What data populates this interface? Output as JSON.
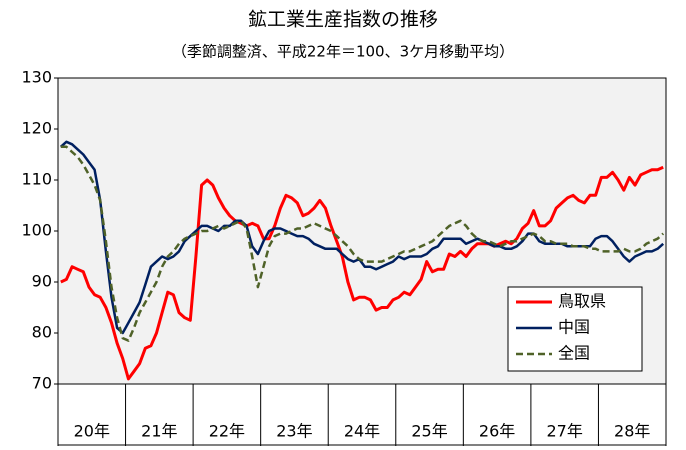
{
  "chart_data": {
    "type": "line",
    "title": "鉱工業生産指数の推移",
    "subtitle": "（季節調整済、平成22年＝100、3ケ月移動平均）",
    "categories": [
      "20年",
      null,
      null,
      null,
      null,
      null,
      null,
      null,
      null,
      null,
      null,
      null,
      "21年",
      null,
      null,
      null,
      null,
      null,
      null,
      null,
      null,
      null,
      null,
      null,
      "22年",
      null,
      null,
      null,
      null,
      null,
      null,
      null,
      null,
      null,
      null,
      null,
      "23年",
      null,
      null,
      null,
      null,
      null,
      null,
      null,
      null,
      null,
      null,
      null,
      "24年",
      null,
      null,
      null,
      null,
      null,
      null,
      null,
      null,
      null,
      null,
      null,
      "25年",
      null,
      null,
      null,
      null,
      null,
      null,
      null,
      null,
      null,
      null,
      null,
      "26年",
      null,
      null,
      null,
      null,
      null,
      null,
      null,
      null,
      null,
      null,
      null,
      "27年",
      null,
      null,
      null,
      null,
      null,
      null,
      null,
      null,
      null,
      null,
      null,
      "28年",
      null,
      null,
      null,
      null,
      null,
      null,
      null,
      null,
      null,
      null,
      null
    ],
    "series": [
      {
        "name": "鳥取県",
        "color": "#ff0000",
        "dash": false,
        "width": 3,
        "values": [
          90,
          90.5,
          93,
          92.5,
          92,
          89,
          87.5,
          87,
          85,
          82,
          78,
          75,
          71,
          72.5,
          74,
          77,
          77.5,
          80,
          84,
          88,
          87.5,
          84,
          83,
          82.5,
          95,
          109,
          110,
          109,
          106.5,
          104.5,
          103,
          102,
          101.5,
          101,
          101.5,
          101,
          98.5,
          98.5,
          101,
          104.5,
          107,
          106.5,
          105.5,
          103,
          103.5,
          104.5,
          106,
          104.5,
          101,
          98,
          95,
          90,
          86.5,
          87,
          87,
          86.5,
          84.5,
          85,
          85,
          86.5,
          87,
          88,
          87.5,
          89,
          90.5,
          94,
          92,
          92.5,
          92.5,
          95.5,
          95,
          96,
          95,
          96.5,
          97.5,
          97.5,
          97.5,
          97,
          97.5,
          98,
          97.5,
          98.5,
          100.5,
          101.5,
          104,
          101,
          101,
          102,
          104.5,
          105.5,
          106.5,
          107,
          106,
          105.5,
          107,
          107,
          110.5,
          110.5,
          111.5,
          110,
          108,
          110.5,
          109,
          111,
          111.5,
          112,
          112,
          112.5
        ]
      },
      {
        "name": "中国",
        "color": "#002060",
        "dash": false,
        "width": 2.5,
        "values": [
          116.5,
          117.5,
          117,
          116,
          115,
          113.5,
          112,
          106,
          96,
          87,
          81,
          80,
          82,
          84,
          86,
          89.5,
          93,
          94,
          95,
          94.5,
          95,
          96,
          98,
          99,
          100,
          101,
          101,
          100.5,
          100,
          101,
          101,
          102,
          102,
          101,
          97,
          95.5,
          98,
          100,
          100.5,
          100.5,
          100,
          99.5,
          99,
          99,
          98.5,
          97.5,
          97,
          96.5,
          96.5,
          96.5,
          95.5,
          94.5,
          94,
          94.5,
          93,
          93,
          92.5,
          93,
          93.5,
          94,
          95,
          94.5,
          95,
          95,
          95,
          95.5,
          96.5,
          97,
          98.5,
          98.5,
          98.5,
          98.5,
          97.5,
          98,
          98.5,
          98,
          97.5,
          97,
          97,
          96.5,
          96.5,
          97,
          98,
          99.5,
          99.5,
          98,
          97.5,
          97.5,
          97.5,
          97.5,
          97,
          97,
          97,
          97,
          97,
          98.5,
          99,
          99,
          98,
          96.5,
          95,
          94,
          95,
          95.5,
          96,
          96,
          96.5,
          97.5
        ]
      },
      {
        "name": "全国",
        "color": "#4f6228",
        "dash": true,
        "width": 2.5,
        "values": [
          116.5,
          116.5,
          115.5,
          114.5,
          113,
          111,
          109,
          106,
          98,
          89,
          83,
          79,
          78.5,
          81,
          84,
          86,
          88,
          90,
          93,
          95,
          96,
          97.5,
          98.5,
          99,
          99.5,
          100,
          100,
          100.5,
          101,
          100.5,
          101,
          101.5,
          102,
          100.5,
          95,
          89,
          93,
          97,
          99,
          99.5,
          99.5,
          100,
          100.5,
          100.5,
          101,
          101.5,
          101,
          100.5,
          100,
          99,
          98,
          97,
          95.5,
          94.5,
          94,
          94,
          94,
          94,
          94.5,
          95,
          95.5,
          96,
          96,
          96.5,
          97,
          97.5,
          98,
          99,
          100,
          101,
          101.5,
          102,
          101,
          99.5,
          98.5,
          98,
          98,
          97.5,
          97,
          97.5,
          98,
          98,
          98.5,
          99,
          99.5,
          99,
          98,
          98,
          97.5,
          97.5,
          97.5,
          97,
          97,
          97,
          96.5,
          96.5,
          96,
          96,
          96,
          96,
          96.5,
          96,
          96,
          96.5,
          97.5,
          98,
          98.5,
          99.5
        ]
      }
    ],
    "ylim": [
      70,
      130
    ],
    "yticks": [
      70,
      80,
      90,
      100,
      110,
      120,
      130
    ],
    "grid": false,
    "legend_position": "lower right",
    "plot_background": "#f2f2f2"
  }
}
